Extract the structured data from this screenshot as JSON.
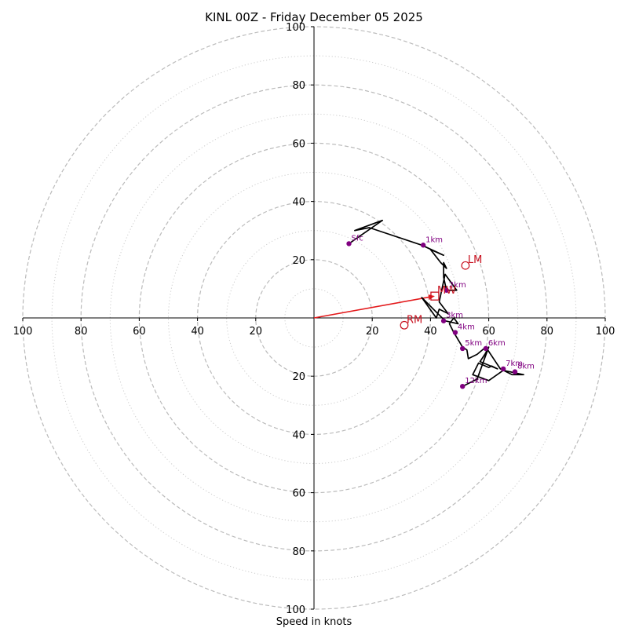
{
  "chart_data": {
    "type": "hodograph",
    "title": "KINL 00Z - Friday December 05 2025",
    "xlabel": "Speed in knots",
    "range": [
      -100,
      100
    ],
    "major_rings": [
      20,
      40,
      60,
      80,
      100
    ],
    "minor_rings": [
      10,
      30,
      50,
      70,
      90
    ],
    "ticks": {
      "x_labels": [
        "100",
        "80",
        "60",
        "40",
        "20",
        "20",
        "40",
        "60",
        "80",
        "100"
      ],
      "x_values": [
        -100,
        -80,
        -60,
        -40,
        -20,
        20,
        40,
        60,
        80,
        100
      ],
      "y_labels": [
        "100",
        "80",
        "60",
        "40",
        "20",
        "20",
        "40",
        "60",
        "80",
        "100"
      ],
      "y_values": [
        100,
        80,
        60,
        40,
        20,
        -20,
        -40,
        -60,
        -80,
        -100
      ]
    },
    "trace": [
      [
        12,
        25.5
      ],
      [
        23.5,
        33.5
      ],
      [
        14,
        30
      ],
      [
        19,
        31
      ],
      [
        37,
        25
      ],
      [
        44.5,
        21.5
      ],
      [
        40,
        23.5
      ],
      [
        43.5,
        19
      ],
      [
        45.5,
        17
      ],
      [
        44.5,
        19
      ],
      [
        44.5,
        14
      ],
      [
        45.5,
        9.5
      ],
      [
        49,
        9.5
      ],
      [
        45,
        15
      ],
      [
        43,
        5.5
      ],
      [
        46,
        1.5
      ],
      [
        43,
        3
      ],
      [
        42,
        0
      ],
      [
        37,
        7
      ],
      [
        41,
        3
      ],
      [
        45,
        -1
      ],
      [
        49.5,
        -2
      ],
      [
        48,
        0
      ],
      [
        46.5,
        -2
      ],
      [
        48,
        -5
      ],
      [
        51,
        -10
      ],
      [
        52.5,
        -11
      ],
      [
        53,
        -14
      ],
      [
        56,
        -12.5
      ],
      [
        59,
        -10
      ],
      [
        62,
        -14.5
      ],
      [
        64,
        -17.5
      ],
      [
        68,
        -19.5
      ],
      [
        72,
        -19.5
      ],
      [
        65,
        -18
      ],
      [
        60,
        -21.5
      ],
      [
        54.5,
        -19.5
      ],
      [
        56.5,
        -15.5
      ],
      [
        60,
        -17
      ],
      [
        61,
        -16.5
      ],
      [
        63,
        -17.5
      ],
      [
        57,
        -15
      ],
      [
        59,
        -12
      ],
      [
        60,
        -10
      ],
      [
        56,
        -21
      ],
      [
        51,
        -23.5
      ]
    ],
    "height_labels": [
      {
        "label": "Sfc",
        "x": 12,
        "y": 25.5
      },
      {
        "label": "1km",
        "x": 37.5,
        "y": 25
      },
      {
        "label": "2km",
        "x": 45.5,
        "y": 9.5
      },
      {
        "label": "3km",
        "x": 44.5,
        "y": -1
      },
      {
        "label": "4km",
        "x": 48.5,
        "y": -5
      },
      {
        "label": "5km",
        "x": 51,
        "y": -10.5
      },
      {
        "label": "6km",
        "x": 59,
        "y": -10.5
      },
      {
        "label": "7km",
        "x": 65,
        "y": -17.5
      },
      {
        "label": "8km",
        "x": 69,
        "y": -18.5
      },
      {
        "label": "12km",
        "x": 51,
        "y": -23.5
      }
    ],
    "storm_motion": {
      "rm": {
        "label": "RM",
        "x": 31,
        "y": -2.5
      },
      "lm": {
        "label": "LM",
        "x": 52,
        "y": 18
      },
      "mw": {
        "label": "MW",
        "x": 41.5,
        "y": 7.5
      }
    },
    "colors": {
      "trace": "#000000",
      "height_points": "#800080",
      "height_labels": "#800080",
      "storm_motion": "#c8101e",
      "arrow": "#e31a1c",
      "grid_major": "#bbbbbb",
      "grid_minor": "#cccccc"
    }
  }
}
